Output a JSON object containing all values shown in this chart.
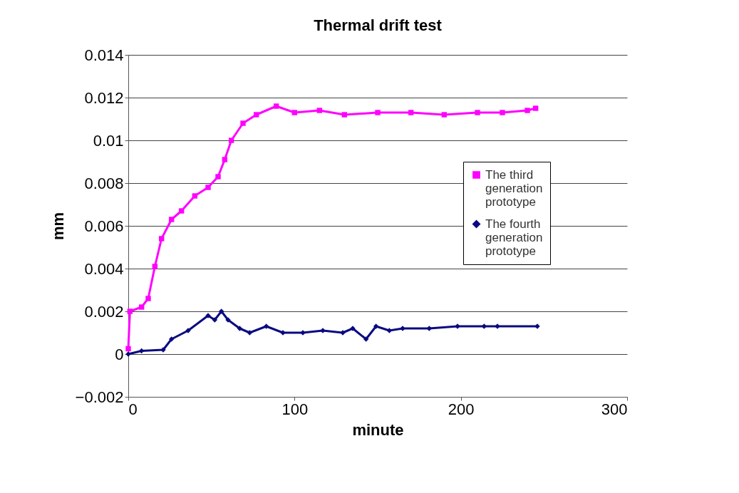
{
  "chart_data": {
    "type": "line",
    "title": "Thermal drift test",
    "xlabel": "minute",
    "ylabel": "mm",
    "xlim": [
      0,
      300
    ],
    "xticks": [
      0,
      100,
      200,
      300
    ],
    "ylim": [
      -0.002,
      0.014
    ],
    "yticks": [
      -0.002,
      0,
      0.002,
      0.004,
      0.006,
      0.008,
      0.01,
      0.012,
      0.014
    ],
    "grid": "y",
    "legend": "right",
    "line_style": "solid",
    "series": [
      {
        "name": "The third generation prototype",
        "color": "#ff00ff",
        "marker": "square",
        "x": [
          0,
          1,
          8,
          12,
          16,
          20,
          26,
          32,
          40,
          48,
          54,
          58,
          62,
          69,
          77,
          89,
          100,
          115,
          130,
          150,
          170,
          190,
          210,
          225,
          240,
          245
        ],
        "values": [
          0.00025,
          0.002,
          0.0022,
          0.0026,
          0.0041,
          0.0054,
          0.0063,
          0.0067,
          0.0074,
          0.0078,
          0.0083,
          0.0091,
          0.01,
          0.0108,
          0.0112,
          0.0116,
          0.0113,
          0.0114,
          0.0112,
          0.0113,
          0.0113,
          0.0112,
          0.0113,
          0.0113,
          0.0114,
          0.0115
        ]
      },
      {
        "name": "The fourth generation prototype",
        "color": "#0a0a80",
        "marker": "diamond",
        "x": [
          0,
          8,
          21,
          26,
          36,
          48,
          52,
          56,
          60,
          67,
          73,
          83,
          93,
          105,
          117,
          129,
          135,
          143,
          149,
          157,
          165,
          181,
          198,
          214,
          222,
          246
        ],
        "values": [
          0,
          0.00015,
          0.0002,
          0.0007,
          0.0011,
          0.0018,
          0.0016,
          0.002,
          0.0016,
          0.0012,
          0.001,
          0.0013,
          0.001,
          0.001,
          0.0011,
          0.001,
          0.0012,
          0.0007,
          0.0013,
          0.0011,
          0.0012,
          0.0012,
          0.0013,
          0.0013,
          0.0013,
          0.0013
        ]
      }
    ]
  }
}
